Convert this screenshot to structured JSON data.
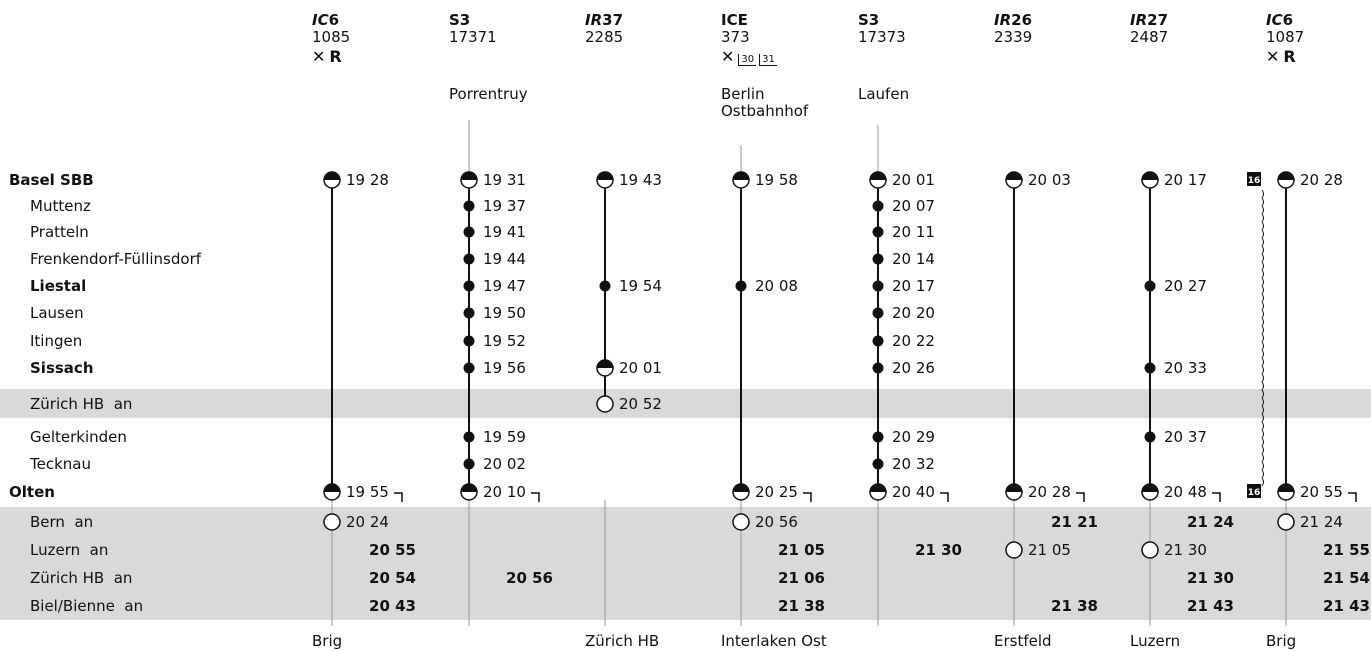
{
  "colors": {
    "band": "#d9d9d9",
    "ink": "#111111",
    "guide": "#9a9a9a"
  },
  "trains": [
    {
      "type": "IC",
      "line": "6",
      "number": "1085",
      "services": [
        "restaurant-icon",
        "reservation-R"
      ],
      "origin": [],
      "destination": "Brig"
    },
    {
      "type": "S3",
      "line": "",
      "number": "17371",
      "services": [],
      "origin": [
        "Porrentruy"
      ],
      "destination": ""
    },
    {
      "type": "IR",
      "line": "37",
      "number": "2285",
      "services": [],
      "origin": [],
      "destination": "Zürich HB"
    },
    {
      "type": "ICE",
      "line": "",
      "number": "373",
      "services": [
        "restaurant-icon",
        "30",
        "31"
      ],
      "origin": [
        "Berlin",
        "Ostbahnhof"
      ],
      "destination": "Interlaken Ost"
    },
    {
      "type": "S3",
      "line": "",
      "number": "17373",
      "services": [],
      "origin": [
        "Laufen"
      ],
      "destination": ""
    },
    {
      "type": "IR",
      "line": "26",
      "number": "2339",
      "services": [],
      "origin": [],
      "destination": "Erstfeld"
    },
    {
      "type": "IR",
      "line": "27",
      "number": "2487",
      "services": [],
      "origin": [],
      "destination": "Luzern"
    },
    {
      "type": "IC",
      "line": "6",
      "number": "1087",
      "services": [
        "restaurant-icon",
        "reservation-R"
      ],
      "origin": [],
      "destination": "Brig"
    }
  ],
  "service_marks": {
    "R": "R",
    "platform_note": "16"
  },
  "stations": [
    {
      "name": "Basel SBB",
      "bold": true,
      "indent": false,
      "band": false
    },
    {
      "name": "Muttenz",
      "bold": false,
      "indent": true,
      "band": false
    },
    {
      "name": "Pratteln",
      "bold": false,
      "indent": true,
      "band": false
    },
    {
      "name": "Frenkendorf-Füllinsdorf",
      "bold": false,
      "indent": true,
      "band": false
    },
    {
      "name": "Liestal",
      "bold": true,
      "indent": true,
      "band": false
    },
    {
      "name": "Lausen",
      "bold": false,
      "indent": true,
      "band": false
    },
    {
      "name": "Itingen",
      "bold": false,
      "indent": true,
      "band": false
    },
    {
      "name": "Sissach",
      "bold": true,
      "indent": true,
      "band": false
    },
    {
      "name": "Zürich HB  an",
      "bold": false,
      "indent": true,
      "band": true
    },
    {
      "name": "Gelterkinden",
      "bold": false,
      "indent": true,
      "band": false
    },
    {
      "name": "Tecknau",
      "bold": false,
      "indent": true,
      "band": false
    },
    {
      "name": "Olten",
      "bold": true,
      "indent": false,
      "band": false
    },
    {
      "name": "Bern  an",
      "bold": false,
      "indent": true,
      "band": true
    },
    {
      "name": "Luzern  an",
      "bold": false,
      "indent": true,
      "band": true
    },
    {
      "name": "Zürich HB  an",
      "bold": false,
      "indent": true,
      "band": true
    },
    {
      "name": "Biel/Bienne  an",
      "bold": false,
      "indent": true,
      "band": true
    }
  ],
  "stops": [
    [
      [
        "half",
        "19 28"
      ],
      null,
      null,
      null,
      null,
      null,
      null,
      null,
      null,
      null,
      null,
      [
        "halfb",
        "19 55"
      ],
      [
        "open",
        "20 24"
      ],
      [
        "arr",
        "20 55"
      ],
      [
        "arr",
        "20 54"
      ],
      [
        "arr",
        "20 43"
      ]
    ],
    [
      [
        "half",
        "19 31"
      ],
      [
        "dot",
        "19 37"
      ],
      [
        "dot",
        "19 41"
      ],
      [
        "dot",
        "19 44"
      ],
      [
        "dot",
        "19 47"
      ],
      [
        "dot",
        "19 50"
      ],
      [
        "dot",
        "19 52"
      ],
      [
        "dot",
        "19 56"
      ],
      null,
      [
        "dot",
        "19 59"
      ],
      [
        "dot",
        "20 02"
      ],
      [
        "halfb",
        "20 10"
      ],
      null,
      null,
      [
        "arr",
        "20 56"
      ],
      null
    ],
    [
      [
        "half",
        "19 43"
      ],
      null,
      null,
      null,
      [
        "dot",
        "19 54"
      ],
      null,
      null,
      [
        "halfb",
        "20 01"
      ],
      [
        "open",
        "20 52"
      ],
      null,
      null,
      null,
      null,
      null,
      null,
      null
    ],
    [
      [
        "half",
        "19 58"
      ],
      null,
      null,
      null,
      [
        "dot",
        "20 08"
      ],
      null,
      null,
      null,
      null,
      null,
      null,
      [
        "halfb",
        "20 25"
      ],
      [
        "open",
        "20 56"
      ],
      [
        "arr",
        "21 05"
      ],
      [
        "arr",
        "21 06"
      ],
      [
        "arr",
        "21 38"
      ]
    ],
    [
      [
        "half",
        "20 01"
      ],
      [
        "dot",
        "20 07"
      ],
      [
        "dot",
        "20 11"
      ],
      [
        "dot",
        "20 14"
      ],
      [
        "dot",
        "20 17"
      ],
      [
        "dot",
        "20 20"
      ],
      [
        "dot",
        "20 22"
      ],
      [
        "dot",
        "20 26"
      ],
      null,
      [
        "dot",
        "20 29"
      ],
      [
        "dot",
        "20 32"
      ],
      [
        "halfb",
        "20 40"
      ],
      null,
      [
        "arr",
        "21 30"
      ],
      null,
      null
    ],
    [
      [
        "half",
        "20 03"
      ],
      null,
      null,
      null,
      null,
      null,
      null,
      null,
      null,
      null,
      null,
      [
        "halfb",
        "20 28"
      ],
      [
        "arr",
        "21 21"
      ],
      [
        "open",
        "21 05"
      ],
      null,
      [
        "arr",
        "21 38"
      ]
    ],
    [
      [
        "half",
        "20 17"
      ],
      null,
      null,
      null,
      [
        "dot",
        "20 27"
      ],
      null,
      null,
      [
        "dot",
        "20 33"
      ],
      null,
      [
        "dot",
        "20 37"
      ],
      null,
      [
        "halfb",
        "20 48"
      ],
      [
        "arr",
        "21 24"
      ],
      [
        "open",
        "21 30"
      ],
      [
        "arr",
        "21 30"
      ],
      [
        "arr",
        "21 43"
      ]
    ],
    [
      [
        "half",
        "20 28"
      ],
      null,
      null,
      null,
      null,
      null,
      null,
      null,
      null,
      null,
      null,
      [
        "halfb",
        "20 55"
      ],
      [
        "open",
        "21 24"
      ],
      [
        "arr",
        "21 55"
      ],
      [
        "arr",
        "21 54"
      ],
      [
        "arr",
        "21 43"
      ]
    ]
  ]
}
